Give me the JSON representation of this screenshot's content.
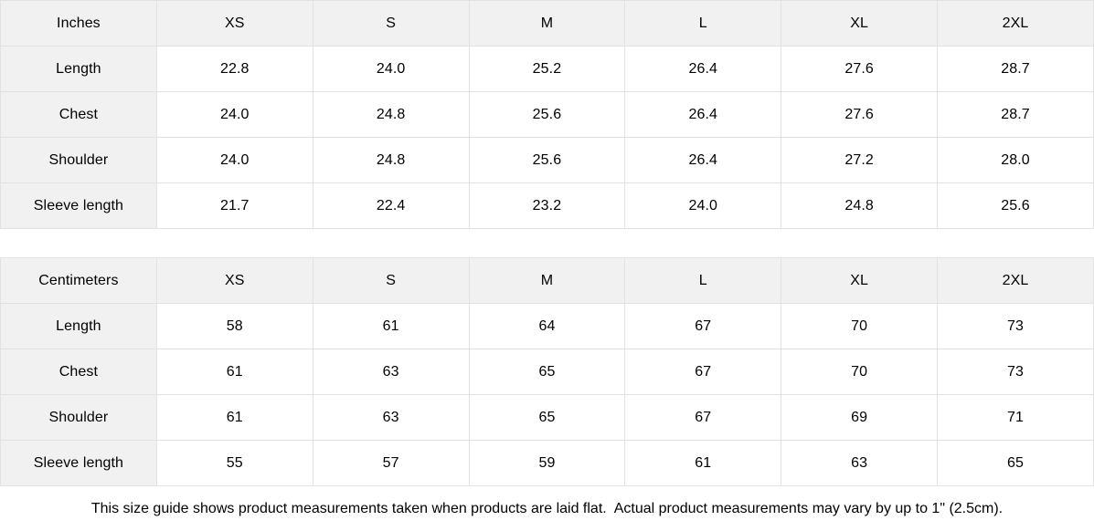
{
  "tables": [
    {
      "unit_header": "Inches",
      "size_headers": [
        "XS",
        "S",
        "M",
        "L",
        "XL",
        "2XL"
      ],
      "rows": [
        {
          "label": "Length",
          "values": [
            "22.8",
            "24.0",
            "25.2",
            "26.4",
            "27.6",
            "28.7"
          ]
        },
        {
          "label": "Chest",
          "values": [
            "24.0",
            "24.8",
            "25.6",
            "26.4",
            "27.6",
            "28.7"
          ]
        },
        {
          "label": "Shoulder",
          "values": [
            "24.0",
            "24.8",
            "25.6",
            "26.4",
            "27.2",
            "28.0"
          ]
        },
        {
          "label": "Sleeve length",
          "values": [
            "21.7",
            "22.4",
            "23.2",
            "24.0",
            "24.8",
            "25.6"
          ]
        }
      ]
    },
    {
      "unit_header": "Centimeters",
      "size_headers": [
        "XS",
        "S",
        "M",
        "L",
        "XL",
        "2XL"
      ],
      "rows": [
        {
          "label": "Length",
          "values": [
            "58",
            "61",
            "64",
            "67",
            "70",
            "73"
          ]
        },
        {
          "label": "Chest",
          "values": [
            "61",
            "63",
            "65",
            "67",
            "70",
            "73"
          ]
        },
        {
          "label": "Shoulder",
          "values": [
            "61",
            "63",
            "65",
            "67",
            "69",
            "71"
          ]
        },
        {
          "label": "Sleeve length",
          "values": [
            "55",
            "57",
            "59",
            "61",
            "63",
            "65"
          ]
        }
      ]
    }
  ],
  "footer": {
    "note": "This size guide shows product measurements taken when products are laid flat.  Actual product measurements may vary by up to 1\" (2.5cm)."
  },
  "colors": {
    "header_bg": "#f1f1f1",
    "border": "#e2e2e2",
    "text": "#000000",
    "background": "#ffffff"
  }
}
